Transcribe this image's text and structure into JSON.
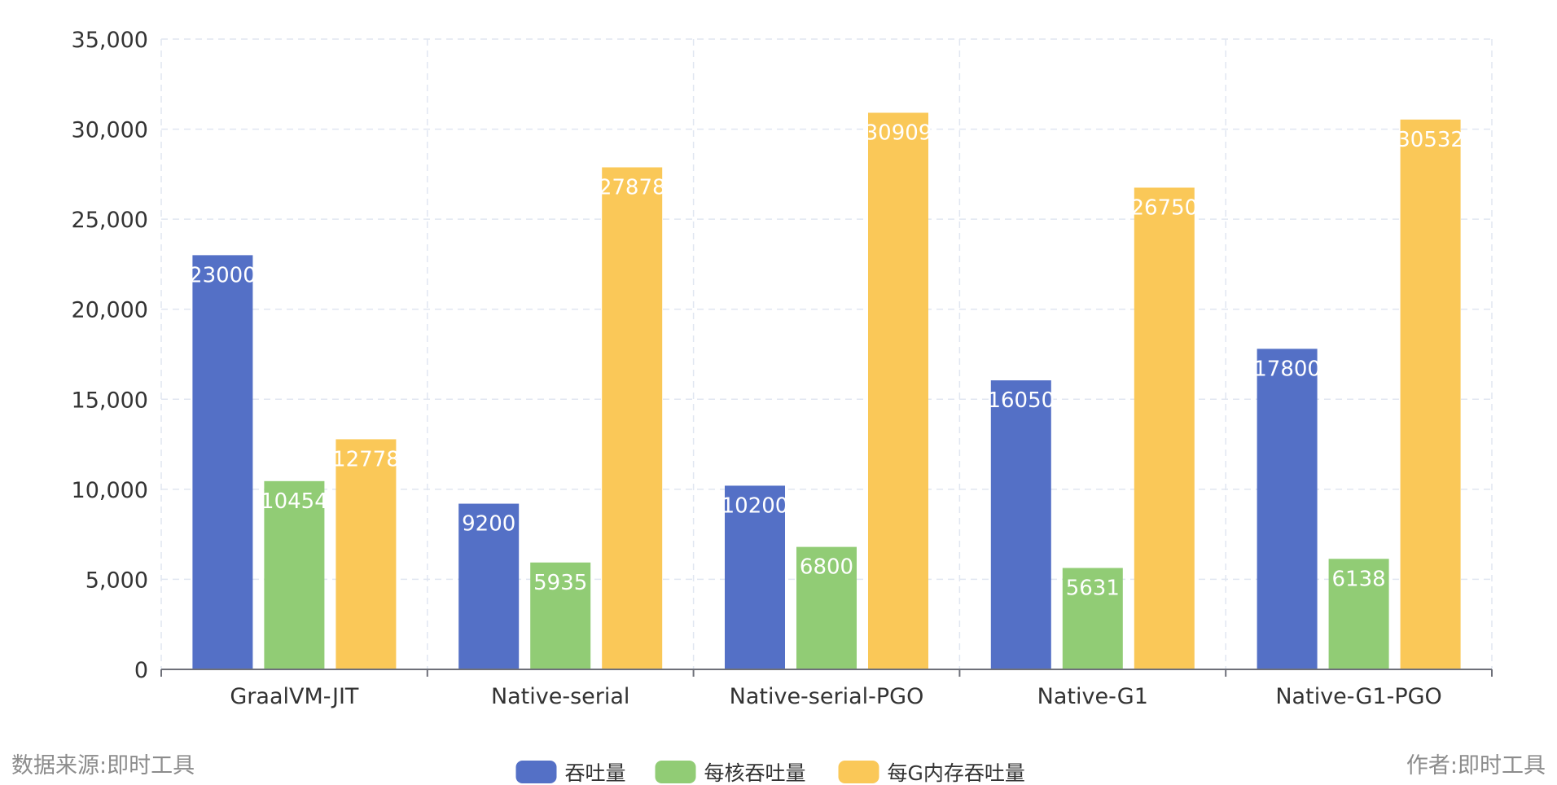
{
  "footer": {
    "source": "数据来源:即时工具",
    "author": "作者:即时工具"
  },
  "chart_data": {
    "type": "bar",
    "categories": [
      "GraalVM-JIT",
      "Native-serial",
      "Native-serial-PGO",
      "Native-G1",
      "Native-G1-PGO"
    ],
    "series": [
      {
        "name": "吞吐量",
        "color": "#5470c6",
        "values": [
          23000,
          9200,
          10200,
          16050,
          17800
        ]
      },
      {
        "name": "每核吞吐量",
        "color": "#91cc75",
        "values": [
          10454,
          5935,
          6800,
          5631,
          6138
        ]
      },
      {
        "name": "每G内存吞吐量",
        "color": "#fac858",
        "values": [
          12778,
          27878,
          30909,
          26750,
          30532
        ]
      }
    ],
    "y_ticks": [
      "0",
      "5,000",
      "10,000",
      "15,000",
      "20,000",
      "25,000",
      "30,000",
      "35,000"
    ],
    "ylim": [
      0,
      35000
    ],
    "grid": true,
    "legend_position": "bottom-center",
    "data_labels": true
  }
}
